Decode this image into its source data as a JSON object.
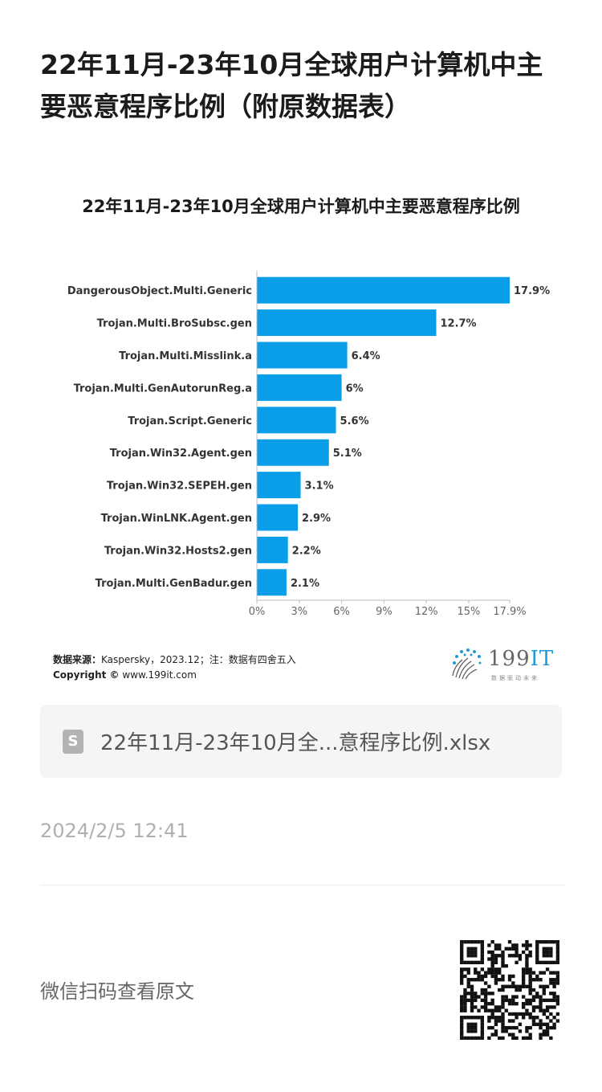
{
  "article": {
    "title": "22年11月-23年10月全球用户计算机中主要恶意程序比例（附原数据表）",
    "attachment_name": "22年11月-23年10月全...意程序比例.xlsx",
    "date": "2024/2/5 12:41",
    "qr_caption": "微信扫码查看原文"
  },
  "source": {
    "label": "数据来源：",
    "text": "Kaspersky，2023.12；注：数据有四舍五入",
    "copyright_label": "Copyright ©",
    "copyright_url": "www.199it.com"
  },
  "logo": {
    "num": "199",
    "it": "IT",
    "sub": "数据驱动未来"
  },
  "chart_data": {
    "type": "bar",
    "orientation": "horizontal",
    "title": "22年11月-23年10月全球用户计算机中主要恶意程序比例",
    "categories": [
      "DangerousObject.Multi.Generic",
      "Trojan.Multi.BroSubsc.gen",
      "Trojan.Multi.Misslink.a",
      "Trojan.Multi.GenAutorunReg.a",
      "Trojan.Script.Generic",
      "Trojan.Win32.Agent.gen",
      "Trojan.Win32.SEPEH.gen",
      "Trojan.WinLNK.Agent.gen",
      "Trojan.Win32.Hosts2.gen",
      "Trojan.Multi.GenBadur.gen"
    ],
    "values": [
      17.9,
      12.7,
      6.4,
      6,
      5.6,
      5.1,
      3.1,
      2.9,
      2.2,
      2.1
    ],
    "value_labels": [
      "17.9%",
      "12.7%",
      "6.4%",
      "6%",
      "5.6%",
      "5.1%",
      "3.1%",
      "2.9%",
      "2.2%",
      "2.1%"
    ],
    "x_ticks": [
      0,
      3,
      6,
      9,
      12,
      15,
      17.9
    ],
    "x_tick_labels": [
      "0%",
      "3%",
      "6%",
      "9%",
      "12%",
      "15%",
      "17.9%"
    ],
    "xlim": [
      0,
      17.9
    ],
    "bar_color": "#0b9ee8",
    "grid": false
  }
}
